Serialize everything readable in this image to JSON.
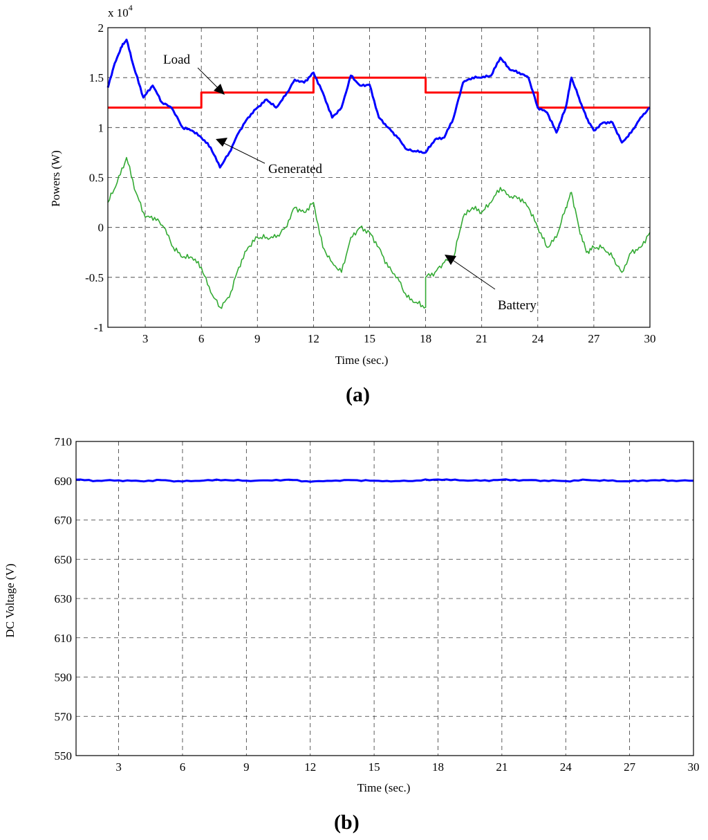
{
  "chart_data": [
    {
      "type": "line",
      "panel_label": "a",
      "xlabel": "Time (sec.)",
      "ylabel": "Powers (W)",
      "y_scale_label": "x 10",
      "y_scale_exponent": "4",
      "xlim": [
        1,
        30
      ],
      "ylim": [
        -1,
        2
      ],
      "xticks": [
        3,
        6,
        9,
        12,
        15,
        18,
        21,
        24,
        27,
        30
      ],
      "yticks": [
        -1,
        -0.5,
        0,
        0.5,
        1,
        1.5,
        2
      ],
      "grid": true,
      "annotations": [
        "Load",
        "Generated",
        "Battery"
      ],
      "series": [
        {
          "name": "Load",
          "color": "#ff0000",
          "x": [
            1,
            6,
            6,
            12,
            12,
            18,
            18,
            24,
            24,
            30
          ],
          "y": [
            1.2,
            1.2,
            1.35,
            1.35,
            1.5,
            1.5,
            1.35,
            1.35,
            1.2,
            1.2
          ]
        },
        {
          "name": "Generated",
          "color": "#0000ff",
          "x": [
            1,
            1.3,
            1.7,
            2.0,
            2.4,
            2.9,
            3.4,
            3.9,
            4.4,
            5.0,
            5.5,
            6.0,
            6.5,
            7.0,
            7.5,
            8.0,
            8.5,
            9.0,
            9.5,
            10.0,
            10.5,
            11.0,
            11.5,
            12.0,
            12.5,
            13.0,
            13.5,
            14.0,
            14.5,
            15.0,
            15.5,
            16.0,
            16.5,
            17.0,
            17.5,
            18.0,
            18.5,
            19.0,
            19.5,
            20.0,
            20.5,
            21.0,
            21.5,
            22.0,
            22.5,
            23.0,
            23.5,
            24.0,
            24.5,
            25.0,
            25.5,
            25.8,
            26.2,
            26.6,
            27.0,
            27.5,
            28.0,
            28.5,
            29.0,
            29.5,
            30.0
          ],
          "y": [
            1.4,
            1.6,
            1.8,
            1.88,
            1.6,
            1.3,
            1.42,
            1.25,
            1.2,
            1.0,
            0.97,
            0.9,
            0.8,
            0.6,
            0.75,
            0.95,
            1.1,
            1.2,
            1.28,
            1.2,
            1.32,
            1.48,
            1.45,
            1.55,
            1.35,
            1.1,
            1.2,
            1.52,
            1.42,
            1.43,
            1.1,
            1.0,
            0.9,
            0.78,
            0.76,
            0.75,
            0.88,
            0.9,
            1.1,
            1.45,
            1.5,
            1.5,
            1.52,
            1.7,
            1.58,
            1.55,
            1.5,
            1.2,
            1.15,
            0.95,
            1.2,
            1.5,
            1.3,
            1.1,
            0.97,
            1.05,
            1.05,
            0.85,
            0.95,
            1.1,
            1.2
          ]
        },
        {
          "name": "Battery",
          "color": "#33aa33",
          "x": [
            1,
            1.5,
            2.0,
            2.5,
            3.0,
            3.5,
            4.0,
            4.5,
            5.0,
            5.5,
            6.0,
            6.5,
            7.0,
            7.5,
            8.0,
            8.5,
            9.0,
            9.5,
            10.0,
            10.5,
            11.0,
            11.5,
            12.0,
            12.5,
            13.0,
            13.5,
            14.0,
            14.5,
            15.0,
            15.5,
            16.0,
            16.5,
            17.0,
            17.5,
            18.0,
            18.0,
            18.5,
            19.0,
            19.5,
            20.0,
            20.5,
            21.0,
            21.5,
            22.0,
            22.5,
            23.0,
            23.5,
            24.0,
            24.5,
            25.0,
            25.5,
            25.8,
            26.2,
            26.6,
            27.0,
            27.5,
            28.0,
            28.5,
            29.0,
            29.5,
            30.0
          ],
          "y": [
            0.25,
            0.45,
            0.7,
            0.35,
            0.1,
            0.1,
            0.0,
            -0.2,
            -0.3,
            -0.3,
            -0.4,
            -0.65,
            -0.8,
            -0.7,
            -0.4,
            -0.2,
            -0.1,
            -0.1,
            -0.1,
            0.0,
            0.2,
            0.15,
            0.25,
            -0.2,
            -0.35,
            -0.45,
            -0.1,
            0.0,
            -0.05,
            -0.2,
            -0.4,
            -0.5,
            -0.7,
            -0.75,
            -0.8,
            -0.5,
            -0.45,
            -0.35,
            -0.3,
            0.1,
            0.2,
            0.15,
            0.25,
            0.4,
            0.3,
            0.3,
            0.2,
            0.0,
            -0.2,
            -0.1,
            0.2,
            0.35,
            0.0,
            -0.25,
            -0.2,
            -0.2,
            -0.3,
            -0.45,
            -0.25,
            -0.2,
            -0.05
          ]
        }
      ]
    },
    {
      "type": "line",
      "panel_label": "b",
      "xlabel": "Time (sec.)",
      "ylabel": "DC Voltage (V)",
      "xlim": [
        1,
        30
      ],
      "ylim": [
        550,
        710
      ],
      "xticks": [
        3,
        6,
        9,
        12,
        15,
        18,
        21,
        24,
        27,
        30
      ],
      "yticks": [
        550,
        570,
        590,
        610,
        630,
        650,
        670,
        690,
        710
      ],
      "grid": true,
      "series": [
        {
          "name": "DC Voltage",
          "color": "#0000ff",
          "x": [
            1,
            2,
            3,
            4,
            5,
            6,
            7,
            8,
            9,
            10,
            11,
            12,
            13,
            14,
            15,
            16,
            17,
            18,
            19,
            20,
            21,
            22,
            23,
            24,
            25,
            26,
            27,
            28,
            29,
            30
          ],
          "y": [
            690.5,
            690.0,
            690.2,
            689.8,
            690.3,
            689.6,
            690.1,
            690.4,
            690.0,
            690.2,
            690.5,
            689.5,
            689.9,
            690.3,
            690.0,
            689.8,
            690.1,
            690.6,
            690.2,
            690.0,
            690.5,
            690.3,
            690.1,
            689.8,
            690.4,
            690.0,
            689.7,
            690.2,
            690.1,
            690.0
          ]
        }
      ]
    }
  ]
}
